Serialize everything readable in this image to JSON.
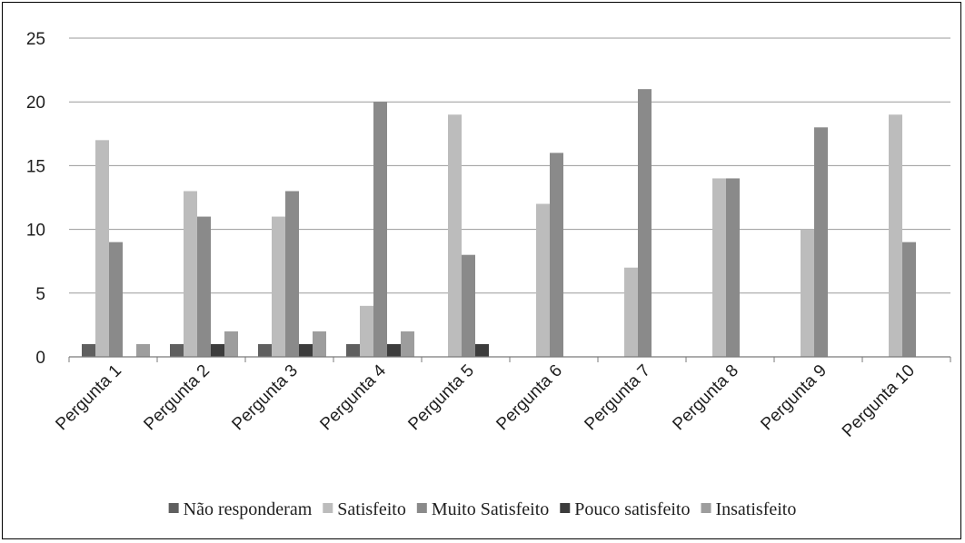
{
  "chart_data": {
    "type": "bar",
    "title": "",
    "xlabel": "",
    "ylabel": "",
    "ylim": [
      0,
      25
    ],
    "yticks": [
      0,
      5,
      10,
      15,
      20,
      25
    ],
    "grid": true,
    "legend_position": "bottom",
    "categories": [
      "Pergunta 1",
      "Pergunta 2",
      "Pergunta 3",
      "Pergunta 4",
      "Pergunta 5",
      "Pergunta 6",
      "Pergunta 7",
      "Pergunta 8",
      "Pergunta 9",
      "Pergunta 10"
    ],
    "series": [
      {
        "name": "Não responderam",
        "color": "#5f5f5f",
        "values": [
          1,
          1,
          1,
          1,
          0,
          0,
          0,
          0,
          0,
          0
        ]
      },
      {
        "name": "Satisfeito",
        "color": "#bcbcbc",
        "values": [
          17,
          13,
          11,
          4,
          19,
          12,
          7,
          14,
          10,
          19
        ]
      },
      {
        "name": "Muito Satisfeito",
        "color": "#8a8a8a",
        "values": [
          9,
          11,
          13,
          20,
          8,
          16,
          21,
          14,
          18,
          9
        ]
      },
      {
        "name": "Pouco satisfeito",
        "color": "#3c3c3c",
        "values": [
          0,
          1,
          1,
          1,
          1,
          0,
          0,
          0,
          0,
          0
        ]
      },
      {
        "name": "Insatisfeito",
        "color": "#9d9d9d",
        "values": [
          1,
          2,
          2,
          2,
          0,
          0,
          0,
          0,
          0,
          0
        ]
      }
    ]
  }
}
